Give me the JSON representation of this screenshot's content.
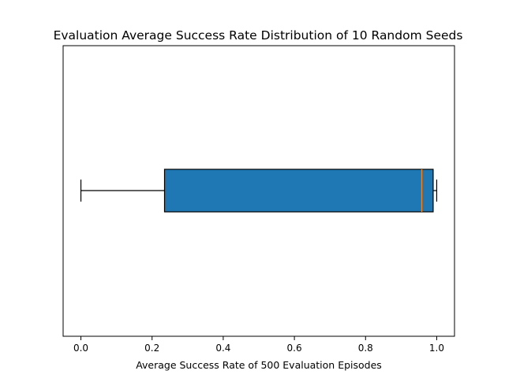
{
  "chart_data": {
    "type": "boxplot",
    "orientation": "horizontal",
    "title": "Evaluation Average Success Rate Distribution of 10 Random Seeds",
    "xlabel": "Average Success Rate of 500 Evaluation Episodes",
    "ylabel": "",
    "xlim": [
      -0.05,
      1.05
    ],
    "xticks": [
      0.0,
      0.2,
      0.4,
      0.6,
      0.8,
      1.0
    ],
    "xtick_labels": [
      "0.0",
      "0.2",
      "0.4",
      "0.6",
      "0.8",
      "1.0"
    ],
    "yticks_visible": false,
    "grid": false,
    "box": {
      "whisker_low": 0.0,
      "q1": 0.235,
      "median": 0.958,
      "q3": 0.99,
      "whisker_high": 1.0,
      "fill_color": "#1f77b4",
      "median_color": "#ff7f0e",
      "edge_color": "#000000"
    }
  }
}
